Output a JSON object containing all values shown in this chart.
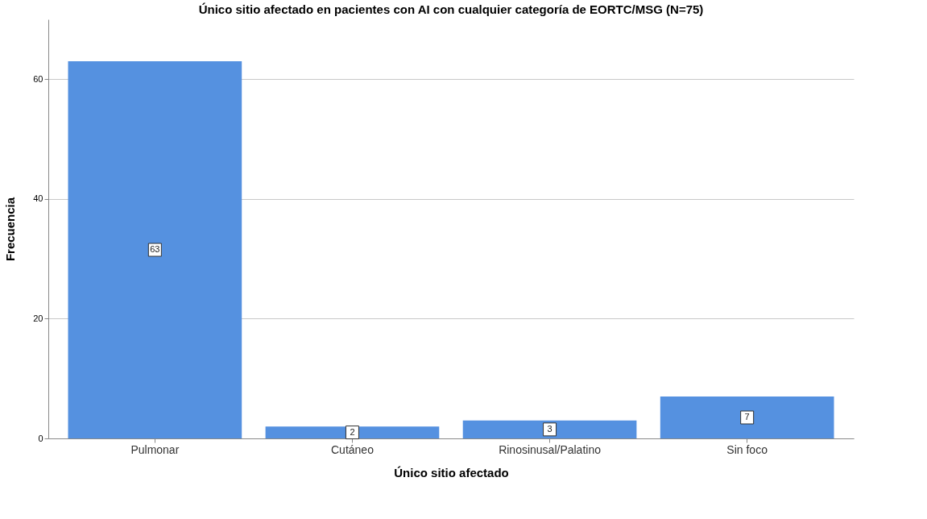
{
  "chart_data": {
    "type": "bar",
    "title": "Único sitio afectado en pacientes con AI con cualquier categoría de EORTC/MSG (N=75)",
    "xlabel": "Único sitio afectado",
    "ylabel": "Frecuencia",
    "categories": [
      "Pulmonar",
      "Cutáneo",
      "Rinosinusal/Palatino",
      "Sin foco"
    ],
    "values": [
      63,
      2,
      3,
      7
    ],
    "color": "#5591e0",
    "ylim": [
      0,
      70
    ],
    "yticks": [
      0,
      20,
      40,
      60
    ],
    "grid": "y",
    "data_labels": true
  }
}
